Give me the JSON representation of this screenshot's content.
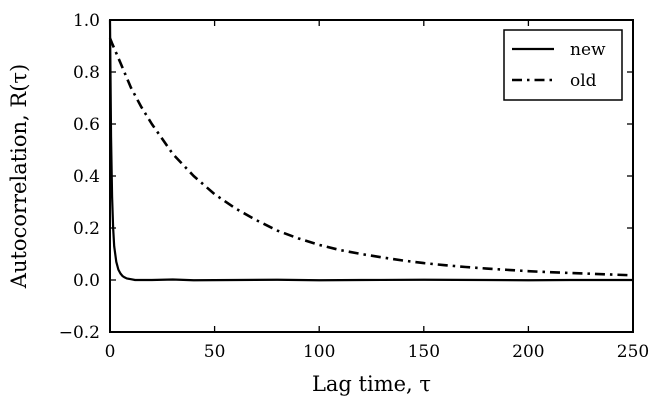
{
  "chart_data": {
    "type": "line",
    "xlabel": "Lag time, τ",
    "ylabel": "Autocorrelation, R(τ)",
    "xlim": [
      0,
      250
    ],
    "ylim": [
      -0.2,
      1.0
    ],
    "xticks": [
      0,
      50,
      100,
      150,
      200,
      250
    ],
    "xtick_labels": [
      "0",
      "50",
      "100",
      "150",
      "200",
      "250"
    ],
    "yticks": [
      -0.2,
      0.0,
      0.2,
      0.4,
      0.6,
      0.8,
      1.0
    ],
    "ytick_labels": [
      "−0.2",
      "0.0",
      "0.2",
      "0.4",
      "0.6",
      "0.8",
      "1.0"
    ],
    "grid": false,
    "legend": "top-right",
    "series": [
      {
        "name": "new",
        "style": "solid",
        "color": "#000000",
        "x": [
          0,
          0.5,
          1,
          1.5,
          2,
          3,
          4,
          5,
          6,
          7,
          8,
          10,
          12,
          15,
          20,
          30,
          40,
          60,
          80,
          100,
          120,
          150,
          180,
          200,
          220,
          250
        ],
        "y": [
          1.0,
          0.55,
          0.32,
          0.2,
          0.13,
          0.07,
          0.04,
          0.025,
          0.015,
          0.01,
          0.006,
          0.003,
          0.0,
          0.0,
          0.0,
          0.002,
          -0.001,
          0.0,
          0.001,
          -0.001,
          0.0,
          0.001,
          0.0,
          -0.001,
          0.0,
          0.0
        ]
      },
      {
        "name": "old",
        "style": "dashdot",
        "color": "#000000",
        "x": [
          0,
          1,
          5,
          10,
          15,
          20,
          30,
          40,
          50,
          60,
          70,
          80,
          90,
          100,
          110,
          120,
          130,
          140,
          150,
          160,
          170,
          180,
          190,
          200,
          210,
          220,
          230,
          240,
          250
        ],
        "y": [
          0.93,
          0.91,
          0.835,
          0.74,
          0.665,
          0.6,
          0.485,
          0.4,
          0.33,
          0.275,
          0.23,
          0.19,
          0.16,
          0.135,
          0.115,
          0.1,
          0.087,
          0.075,
          0.065,
          0.057,
          0.05,
          0.044,
          0.039,
          0.034,
          0.03,
          0.027,
          0.024,
          0.021,
          0.018
        ]
      }
    ]
  }
}
